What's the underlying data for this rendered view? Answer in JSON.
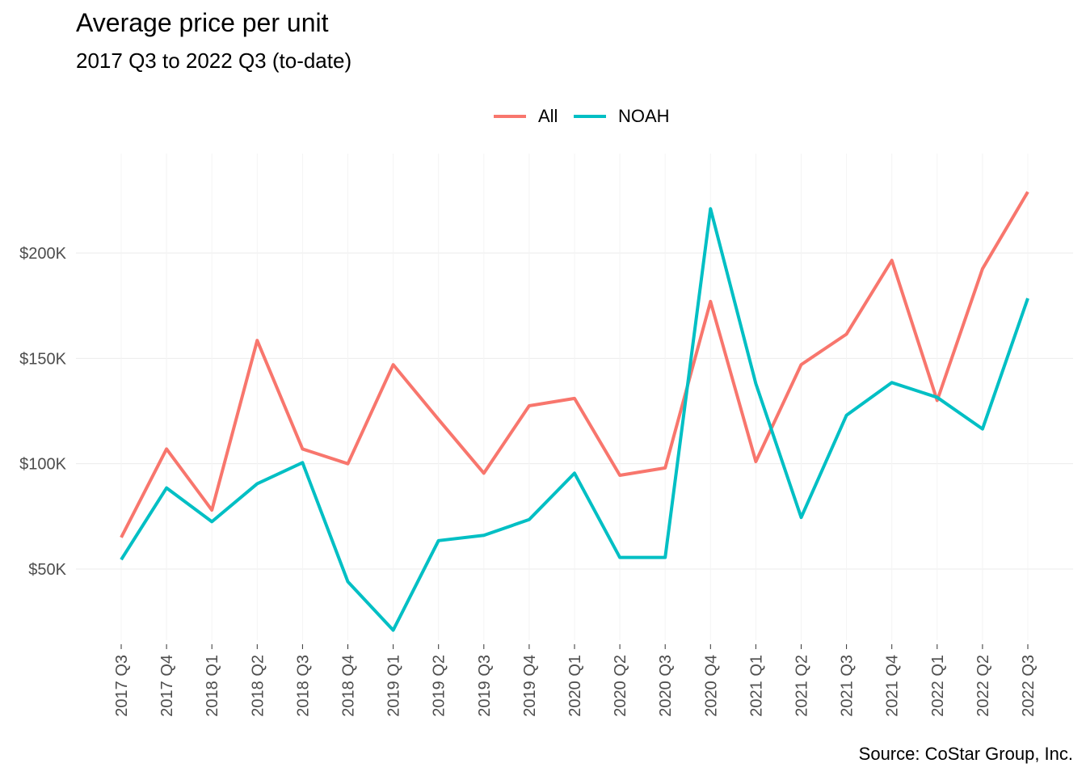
{
  "chart_data": {
    "type": "line",
    "title": "Average price per unit",
    "subtitle": "2017 Q3 to 2022 Q3 (to-date)",
    "caption": "Source: CoStar Group, Inc.",
    "xlabel": "",
    "ylabel": "",
    "categories": [
      "2017 Q3",
      "2017 Q4",
      "2018 Q1",
      "2018 Q2",
      "2018 Q3",
      "2018 Q4",
      "2019 Q1",
      "2019 Q2",
      "2019 Q3",
      "2019 Q4",
      "2020 Q1",
      "2020 Q2",
      "2020 Q3",
      "2020 Q4",
      "2021 Q1",
      "2021 Q2",
      "2021 Q3",
      "2021 Q4",
      "2022 Q1",
      "2022 Q2",
      "2022 Q3"
    ],
    "y_ticks": [
      50000,
      100000,
      150000,
      200000
    ],
    "y_tick_labels": [
      "$50K",
      "$100K",
      "$150K",
      "$200K"
    ],
    "ylim": [
      18000,
      232000
    ],
    "grid": true,
    "legend_position": "top",
    "series": [
      {
        "name": "All",
        "color": "#F8766D",
        "values": [
          65000,
          107000,
          78000,
          158500,
          107000,
          100000,
          147000,
          121000,
          95500,
          127500,
          131000,
          94500,
          98000,
          177000,
          101000,
          147000,
          161500,
          196500,
          130000,
          192500,
          229000
        ]
      },
      {
        "name": "NOAH",
        "color": "#00BFC4",
        "values": [
          54500,
          88500,
          72500,
          90500,
          100500,
          44000,
          21000,
          63500,
          66000,
          73500,
          95500,
          55500,
          55500,
          221000,
          138000,
          74500,
          123000,
          138500,
          131500,
          116500,
          178500
        ]
      }
    ]
  }
}
